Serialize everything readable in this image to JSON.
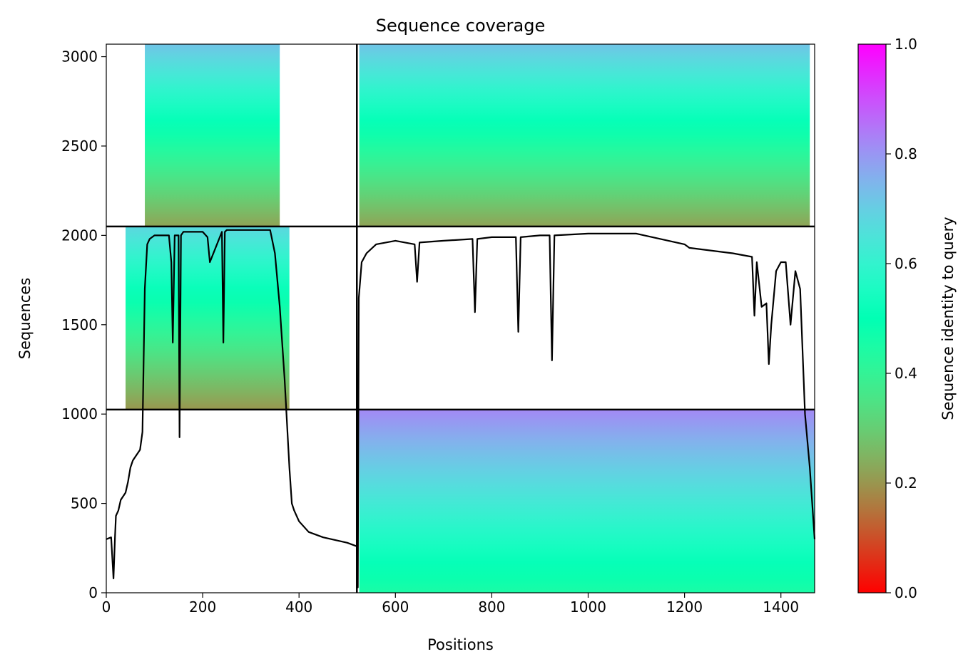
{
  "chart_data": {
    "type": "heatmap",
    "title": "Sequence coverage",
    "xlabel": "Positions",
    "ylabel": "Sequences",
    "xlim": [
      0,
      1470
    ],
    "ylim": [
      0,
      3070
    ],
    "x_ticks": [
      0,
      200,
      400,
      600,
      800,
      1000,
      1200,
      1400
    ],
    "y_ticks": [
      0,
      500,
      1000,
      1500,
      2000,
      2500,
      3000
    ],
    "colorbar": {
      "label": "Sequence identity to query",
      "range": [
        0.0,
        1.0
      ],
      "ticks": [
        "0.0",
        "0.2",
        "0.4",
        "0.6",
        "0.8",
        "1.0"
      ],
      "colormap": "rainbow"
    },
    "block_boundaries": {
      "x": [
        520
      ],
      "y": [
        1025,
        2050
      ]
    },
    "coverage_blocks": [
      {
        "name": "chain1-paired-top",
        "x": [
          0,
          520
        ],
        "y": [
          2050,
          3070
        ],
        "identity_top": 0.72,
        "identity_bottom": 0.22,
        "coverage_x": [
          80,
          360
        ]
      },
      {
        "name": "chain2-paired-top",
        "x": [
          520,
          1470
        ],
        "y": [
          2050,
          3070
        ],
        "identity_top": 0.72,
        "identity_bottom": 0.22,
        "coverage_x": [
          525,
          1460
        ]
      },
      {
        "name": "chain1-unpaired",
        "x": [
          0,
          520
        ],
        "y": [
          1025,
          2050
        ],
        "identity_top": 0.68,
        "identity_bottom": 0.2,
        "coverage_x": [
          40,
          380
        ]
      },
      {
        "name": "chain2-unpaired",
        "x": [
          520,
          1470
        ],
        "y": [
          0,
          1025
        ],
        "identity_top": 0.82,
        "identity_bottom": 0.45,
        "coverage_x": [
          525,
          1470
        ]
      }
    ],
    "coverage_line": {
      "x": [
        0,
        10,
        15,
        18,
        20,
        25,
        30,
        40,
        45,
        50,
        55,
        60,
        65,
        70,
        75,
        80,
        85,
        90,
        100,
        130,
        135,
        138,
        142,
        150,
        152,
        155,
        160,
        200,
        210,
        215,
        240,
        243,
        246,
        250,
        340,
        350,
        360,
        370,
        380,
        385,
        390,
        400,
        420,
        450,
        500,
        520,
        522,
        524,
        530,
        540,
        560,
        600,
        640,
        645,
        650,
        700,
        760,
        765,
        770,
        800,
        850,
        855,
        860,
        900,
        920,
        925,
        930,
        1000,
        1100,
        1200,
        1210,
        1300,
        1340,
        1345,
        1350,
        1360,
        1370,
        1375,
        1380,
        1390,
        1400,
        1410,
        1420,
        1430,
        1440,
        1450,
        1460,
        1470
      ],
      "y": [
        300,
        310,
        80,
        310,
        430,
        460,
        520,
        560,
        620,
        700,
        740,
        760,
        780,
        800,
        900,
        1700,
        1950,
        1980,
        2000,
        2000,
        1850,
        1400,
        2000,
        2000,
        870,
        2000,
        2020,
        2020,
        1990,
        1850,
        2020,
        1400,
        2020,
        2030,
        2030,
        1900,
        1600,
        1200,
        700,
        500,
        460,
        400,
        340,
        310,
        280,
        260,
        30,
        1650,
        1850,
        1900,
        1950,
        1970,
        1950,
        1740,
        1960,
        1970,
        1980,
        1570,
        1980,
        1990,
        1990,
        1460,
        1990,
        2000,
        2000,
        1300,
        2000,
        2010,
        2010,
        1950,
        1930,
        1900,
        1880,
        1550,
        1850,
        1600,
        1620,
        1280,
        1500,
        1800,
        1850,
        1850,
        1500,
        1800,
        1700,
        1000,
        700,
        300
      ]
    }
  }
}
